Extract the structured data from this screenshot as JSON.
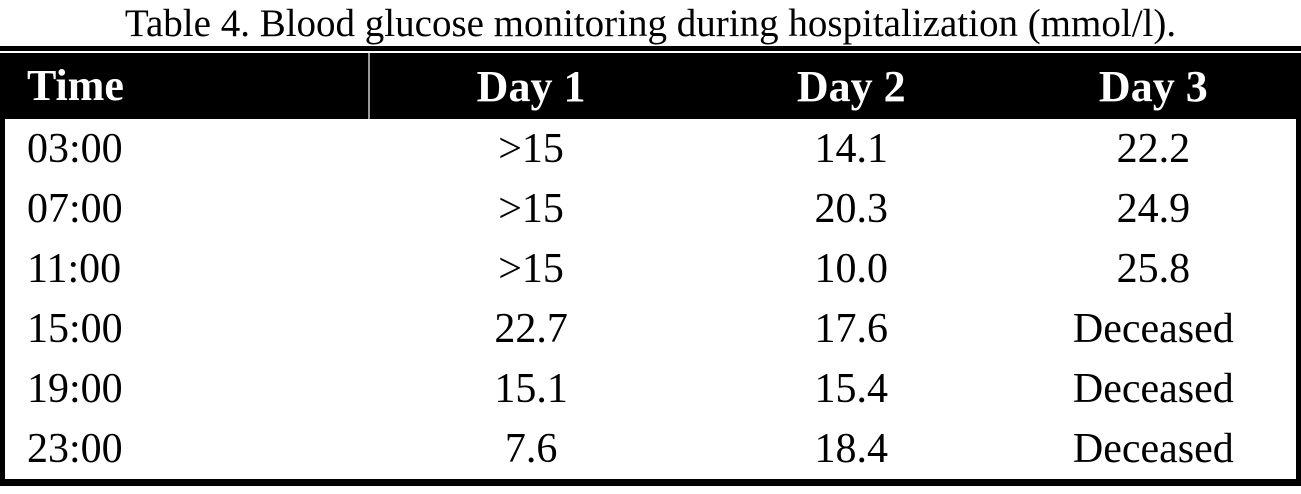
{
  "table": {
    "title": "Table 4. Blood glucose monitoring during hospitalization (mmol/l).",
    "columns": [
      "Time",
      "Day 1",
      "Day 2",
      "Day 3"
    ],
    "rows": [
      [
        "03:00",
        ">15",
        "14.1",
        "22.2"
      ],
      [
        "07:00",
        ">15",
        "20.3",
        "24.9"
      ],
      [
        "11:00",
        ">15",
        "10.0",
        "25.8"
      ],
      [
        "15:00",
        "22.7",
        "17.6",
        "Deceased"
      ],
      [
        "19:00",
        "15.1",
        "15.4",
        "Deceased"
      ],
      [
        "23:00",
        "7.6",
        "18.4",
        "Deceased"
      ]
    ],
    "unit": "mmol/l"
  },
  "colors": {
    "header_bg": "#000000",
    "header_text": "#ffffff",
    "body_text": "#000000",
    "border": "#000000",
    "header_divider": "#9a9a9a"
  },
  "chart_data": {
    "type": "table",
    "title": "Table 4. Blood glucose monitoring during hospitalization (mmol/l).",
    "columns": [
      "Time",
      "Day 1",
      "Day 2",
      "Day 3"
    ],
    "rows": [
      [
        "03:00",
        ">15",
        "14.1",
        "22.2"
      ],
      [
        "07:00",
        ">15",
        "20.3",
        "24.9"
      ],
      [
        "11:00",
        ">15",
        "10.0",
        "25.8"
      ],
      [
        "15:00",
        "22.7",
        "17.6",
        "Deceased"
      ],
      [
        "19:00",
        "15.1",
        "15.4",
        "Deceased"
      ],
      [
        "23:00",
        "7.6",
        "18.4",
        "Deceased"
      ]
    ]
  }
}
